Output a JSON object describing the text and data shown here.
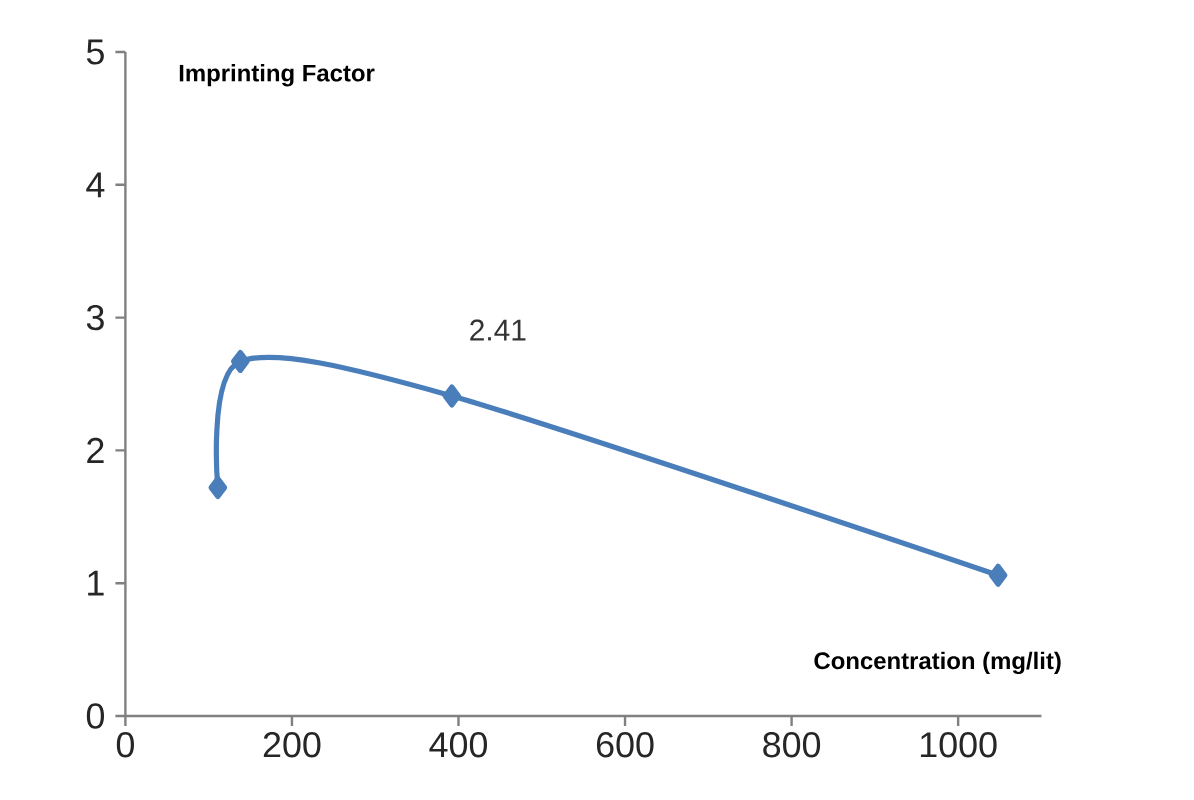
{
  "chart_data": {
    "type": "line",
    "xlabel": "Concentration (mg/lit)",
    "ylabel": "Imprinting Factor",
    "x": [
      111,
      138,
      392,
      1048
    ],
    "series": [
      {
        "color": "#4a7ebb",
        "values": [
          1.72,
          2.67,
          2.41,
          1.06
        ],
        "value_labels": [
          null,
          null,
          "2.41",
          null
        ]
      }
    ],
    "xlim": [
      0,
      1100
    ],
    "xticks": [
      0,
      200,
      400,
      600,
      800,
      1000
    ],
    "ylim": [
      0,
      5
    ],
    "yticks": [
      0,
      1,
      2,
      3,
      4,
      5
    ],
    "grid": false,
    "marker": "diamond",
    "line_style": "solid"
  }
}
